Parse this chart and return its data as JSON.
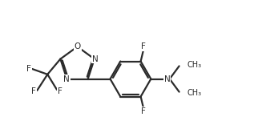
{
  "bg_color": "#ffffff",
  "line_color": "#2b2b2b",
  "text_color": "#2b2b2b",
  "line_width": 1.6,
  "font_size": 7.5,
  "figsize": [
    3.17,
    1.61
  ],
  "dpi": 100,
  "xlim": [
    -0.5,
    8.8
  ],
  "ylim": [
    0.0,
    5.2
  ]
}
